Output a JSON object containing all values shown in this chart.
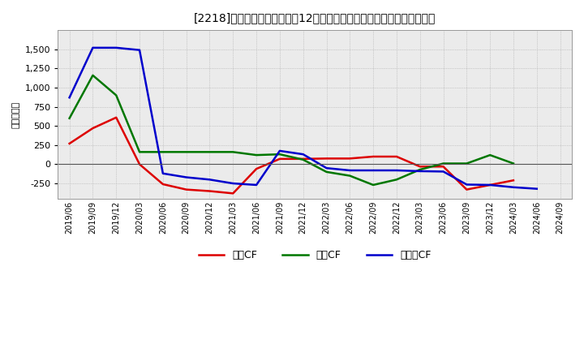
{
  "title": "[2218]　キャッシュフローの12か月移動合計の対前年同期増減額の推移",
  "ylabel": "（百万円）",
  "x_labels": [
    "2019/06",
    "2019/09",
    "2019/12",
    "2020/03",
    "2020/06",
    "2020/09",
    "2020/12",
    "2021/03",
    "2021/06",
    "2021/09",
    "2021/12",
    "2022/03",
    "2022/06",
    "2022/09",
    "2022/12",
    "2023/03",
    "2023/06",
    "2023/09",
    "2023/12",
    "2024/03",
    "2024/06",
    "2024/09"
  ],
  "eigyo_cf": [
    270,
    470,
    610,
    0,
    -260,
    -330,
    -350,
    -380,
    -60,
    70,
    70,
    75,
    75,
    100,
    100,
    -30,
    -30,
    -330,
    -270,
    -210,
    null,
    null
  ],
  "toshi_cf": [
    600,
    1160,
    900,
    160,
    160,
    160,
    160,
    160,
    120,
    130,
    60,
    -100,
    -150,
    -270,
    -200,
    -70,
    10,
    10,
    120,
    10,
    null,
    null
  ],
  "free_cf": [
    870,
    1520,
    1520,
    1490,
    -120,
    -170,
    -200,
    -250,
    -270,
    175,
    130,
    -50,
    -80,
    -80,
    -80,
    -90,
    -95,
    -265,
    -270,
    -300,
    -320,
    null
  ],
  "eigyo_color": "#dd0000",
  "toshi_color": "#007700",
  "free_color": "#0000cc",
  "bg_color": "#ffffff",
  "plot_bg_color": "#ebebeb",
  "ylim_min": -450,
  "ylim_max": 1750,
  "yticks": [
    -250,
    0,
    250,
    500,
    750,
    1000,
    1250,
    1500
  ],
  "legend_labels": [
    "営業CF",
    "投資CF",
    "フリーCF"
  ]
}
